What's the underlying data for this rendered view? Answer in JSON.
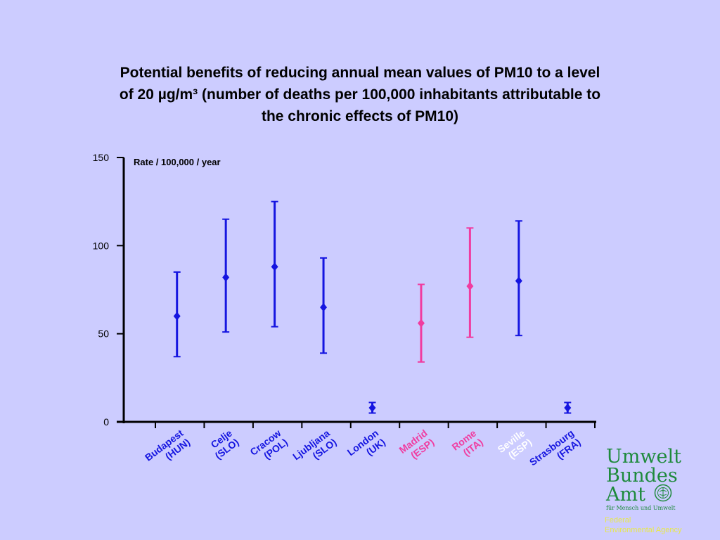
{
  "title_lines": [
    "Potential benefits of reducing annual mean values of PM10 to a level",
    "of 20 µg/m³ (number of deaths per 100,000 inhabitants attributable to",
    "the chronic effects of PM10)"
  ],
  "logo": {
    "lines": [
      "Umwelt",
      "Bundes",
      "Amt"
    ],
    "tagline": "für Mensch und Umwelt"
  },
  "agency": [
    "Federal",
    "Environmental Agency"
  ],
  "colors": {
    "background": "#ccccff",
    "blue": "#1515e0",
    "pink": "#f03ca0",
    "white": "#ffffff",
    "logo_green": "#1e8a3c",
    "agency_yellow": "#e8e84a"
  },
  "chart_data": {
    "type": "scatter",
    "ylabel": "Rate / 100,000 /  year",
    "ylim": [
      0,
      150
    ],
    "yticks": [
      0,
      50,
      100,
      150
    ],
    "grid": false,
    "points": [
      {
        "city": "Budapest",
        "country": "(HUN)",
        "value": 60,
        "low": 37,
        "high": 85,
        "color": "blue",
        "label_color": "blue"
      },
      {
        "city": "Celje",
        "country": "(SLO)",
        "value": 82,
        "low": 51,
        "high": 115,
        "color": "blue",
        "label_color": "blue"
      },
      {
        "city": "Cracow",
        "country": "(POL)",
        "value": 88,
        "low": 54,
        "high": 125,
        "color": "blue",
        "label_color": "blue"
      },
      {
        "city": "Ljubljana",
        "country": "(SLO)",
        "value": 65,
        "low": 39,
        "high": 93,
        "color": "blue",
        "label_color": "blue"
      },
      {
        "city": "London",
        "country": "(UK)",
        "value": 8,
        "low": 5,
        "high": 11,
        "color": "blue",
        "label_color": "blue"
      },
      {
        "city": "Madrid",
        "country": "(ESP)",
        "value": 56,
        "low": 34,
        "high": 78,
        "color": "pink",
        "label_color": "pink"
      },
      {
        "city": "Rome",
        "country": "(ITA)",
        "value": 77,
        "low": 48,
        "high": 110,
        "color": "pink",
        "label_color": "pink"
      },
      {
        "city": "Seville",
        "country": "(ESP)",
        "value": 80,
        "low": 49,
        "high": 114,
        "color": "blue",
        "label_color": "white"
      },
      {
        "city": "Strasbourg",
        "country": "(FRA)",
        "value": 8,
        "low": 5,
        "high": 11,
        "color": "blue",
        "label_color": "blue"
      }
    ]
  }
}
